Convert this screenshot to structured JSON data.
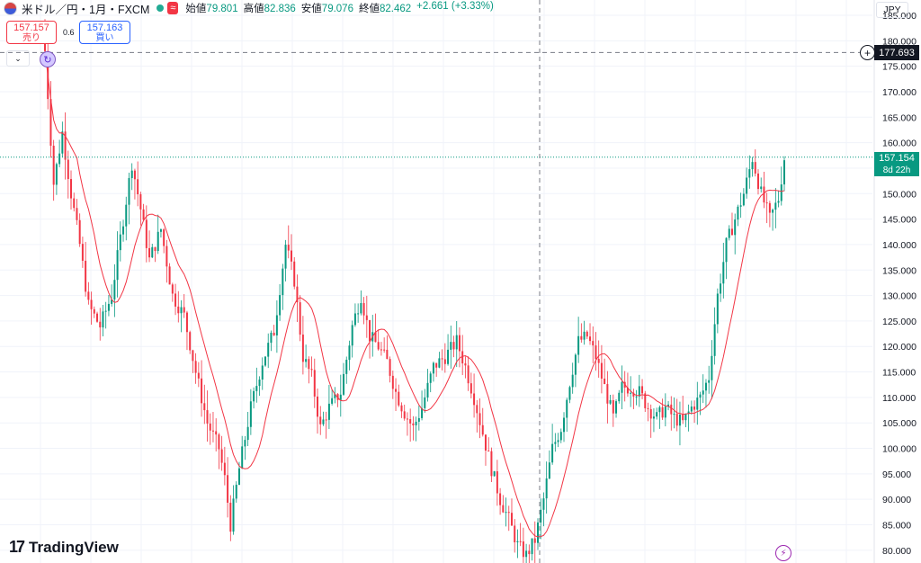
{
  "symbol": {
    "name": "米ドル／円・1月・FXCM",
    "flag_icon": "us-jp-flag-icon",
    "badge": "≈"
  },
  "ohlc": {
    "open_label": "始値",
    "open": "79.801",
    "high_label": "高値",
    "high": "82.836",
    "low_label": "安値",
    "low": "79.076",
    "close_label": "終値",
    "close": "82.462",
    "change": "+2.661 (+3.33%)"
  },
  "trade": {
    "sell_price": "157.157",
    "sell_label": "売り",
    "buy_price": "157.163",
    "buy_label": "買い",
    "spread": "0.6"
  },
  "axis": {
    "currency": "JPY",
    "ticks": [
      "185.000",
      "180.000",
      "175.000",
      "170.000",
      "165.000",
      "160.000",
      "155.000",
      "150.000",
      "145.000",
      "140.000",
      "135.000",
      "130.000",
      "125.000",
      "120.000",
      "115.000",
      "110.000",
      "105.000",
      "100.000",
      "95.000",
      "90.000",
      "85.000",
      "80.000"
    ],
    "ymin": 77.5,
    "ymax": 188.0
  },
  "crosshair": {
    "price": "177.693"
  },
  "last_price": {
    "value": "157.154",
    "countdown": "8d 22h"
  },
  "brand": {
    "logo_text": "TradingView"
  },
  "colors": {
    "up": "#089981",
    "down": "#f23645",
    "ma": "#f23645",
    "grid": "#f0f3fa",
    "crosshair": "#787b86"
  },
  "chart_data": {
    "type": "candlestick",
    "ma_series": {
      "kind": "moving-average"
    },
    "anchors": [
      [
        0,
        178
      ],
      [
        3,
        152
      ],
      [
        6,
        162
      ],
      [
        9,
        150
      ],
      [
        12,
        140
      ],
      [
        15,
        128
      ],
      [
        19,
        124
      ],
      [
        23,
        130
      ],
      [
        27,
        145
      ],
      [
        30,
        156
      ],
      [
        33,
        147
      ],
      [
        36,
        137
      ],
      [
        40,
        143
      ],
      [
        44,
        130
      ],
      [
        48,
        126
      ],
      [
        52,
        115
      ],
      [
        56,
        105
      ],
      [
        60,
        100
      ],
      [
        62,
        94
      ],
      [
        64,
        85
      ],
      [
        67,
        96
      ],
      [
        71,
        108
      ],
      [
        75,
        117
      ],
      [
        79,
        123
      ],
      [
        83,
        140
      ],
      [
        86,
        133
      ],
      [
        89,
        118
      ],
      [
        92,
        114
      ],
      [
        95,
        104
      ],
      [
        98,
        108
      ],
      [
        102,
        111
      ],
      [
        106,
        124
      ],
      [
        109,
        130
      ],
      [
        112,
        122
      ],
      [
        115,
        120
      ],
      [
        118,
        117
      ],
      [
        121,
        111
      ],
      [
        124,
        107
      ],
      [
        127,
        104
      ],
      [
        130,
        108
      ],
      [
        134,
        116
      ],
      [
        138,
        118
      ],
      [
        142,
        121
      ],
      [
        145,
        116
      ],
      [
        148,
        110
      ],
      [
        151,
        103
      ],
      [
        154,
        96
      ],
      [
        157,
        90
      ],
      [
        160,
        86
      ],
      [
        163,
        81
      ],
      [
        166,
        79
      ],
      [
        169,
        82
      ],
      [
        172,
        90
      ],
      [
        175,
        100
      ],
      [
        178,
        104
      ],
      [
        181,
        113
      ],
      [
        184,
        121
      ],
      [
        187,
        122
      ],
      [
        190,
        118
      ],
      [
        193,
        112
      ],
      [
        196,
        106
      ],
      [
        199,
        112
      ],
      [
        202,
        112
      ],
      [
        205,
        111
      ],
      [
        208,
        108
      ],
      [
        211,
        106
      ],
      [
        214,
        108
      ],
      [
        217,
        106
      ],
      [
        220,
        105
      ],
      [
        223,
        108
      ],
      [
        226,
        110
      ],
      [
        229,
        114
      ],
      [
        232,
        130
      ],
      [
        235,
        140
      ],
      [
        238,
        145
      ],
      [
        241,
        150
      ],
      [
        244,
        157
      ],
      [
        247,
        150
      ],
      [
        250,
        145
      ],
      [
        253,
        149
      ],
      [
        255,
        157
      ]
    ]
  }
}
